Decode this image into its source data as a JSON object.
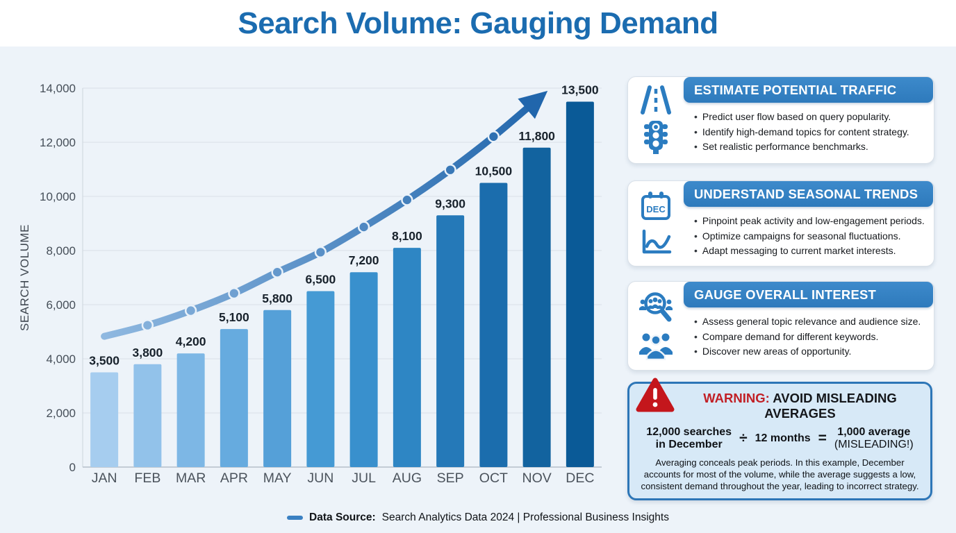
{
  "title": "Search Volume: Gauging Demand",
  "chart_data": {
    "type": "bar",
    "title": "Search Volume: Gauging Demand",
    "xlabel": "",
    "ylabel": "SEARCH VOLUME",
    "categories": [
      "JAN",
      "FEB",
      "MAR",
      "APR",
      "MAY",
      "JUN",
      "JUL",
      "AUG",
      "SEP",
      "OCT",
      "NOV",
      "DEC"
    ],
    "values": [
      3500,
      3800,
      4200,
      5100,
      5800,
      6500,
      7200,
      8100,
      9300,
      10500,
      11800,
      13500
    ],
    "value_labels": [
      "3,500",
      "3,800",
      "4,200",
      "5,100",
      "5,800",
      "6,500",
      "7,200",
      "8,100",
      "9,300",
      "10,500",
      "11,800",
      "13,500"
    ],
    "ylim": [
      0,
      14000
    ],
    "ytick_step": 2000,
    "ytick_labels": [
      "0",
      "2,000",
      "4,000",
      "6,000",
      "8,000",
      "10,000",
      "12,000",
      "14,000"
    ],
    "grid": true,
    "legend_position": "none",
    "bar_colors": [
      "#a6cdef",
      "#92c2ea",
      "#7db7e5",
      "#66abdf",
      "#55a0d8",
      "#459ad4",
      "#3990cd",
      "#2e86c4",
      "#2579b8",
      "#1b6dad",
      "#12639f",
      "#0a5a97"
    ],
    "trend": {
      "type": "arrow-line",
      "values": [
        4830,
        5240,
        5780,
        6420,
        7200,
        7940,
        8870,
        9870,
        10980,
        12210
      ],
      "marker_indices": [
        1,
        2,
        3,
        4,
        5,
        6,
        7,
        8,
        9
      ],
      "tip_month_offset": 10.25,
      "tip_value": 13900,
      "color_start": "#8fb8e0",
      "color_end": "#2166ac"
    }
  },
  "cards": [
    {
      "title": "ESTIMATE POTENTIAL TRAFFIC",
      "icons": [
        "road-icon",
        "traffic-light-icon"
      ],
      "bullets": [
        "Predict user flow based on query popularity.",
        "Identify high-demand topics for content strategy.",
        "Set realistic performance benchmarks."
      ]
    },
    {
      "title": "UNDERSTAND SEASONAL TRENDS",
      "icons": [
        "calendar-icon",
        "wave-chart-icon"
      ],
      "icon_text": "DEC",
      "bullets": [
        "Pinpoint peak activity and low-engagement periods.",
        "Optimize campaigns for seasonal fluctuations.",
        "Adapt messaging to current market interests."
      ]
    },
    {
      "title": "GAUGE OVERALL INTEREST",
      "icons": [
        "people-search-icon",
        "people-group-icon"
      ],
      "bullets": [
        "Assess general topic relevance and audience size.",
        "Compare demand for different keywords.",
        "Discover new areas of opportunity."
      ]
    }
  ],
  "warning": {
    "label": "WARNING:",
    "title": "AVOID MISLEADING AVERAGES",
    "formula": {
      "left_line1": "12,000 searches",
      "left_line2": "in December",
      "divide_sign": "÷",
      "middle": "12 months",
      "equals_sign": "=",
      "right_line1": "1,000 average",
      "right_line2": "(MISLEADING!)"
    },
    "body": "Averaging conceals peak periods. In this example, December accounts for most of the volume, while the average suggests a low, consistent demand throughout the year, leading to incorrect strategy."
  },
  "footer": {
    "label": "Data Source:",
    "text": "Search Analytics Data 2024 | Professional Business Insights"
  },
  "colors": {
    "title_blue": "#1b6cb0",
    "accent_blue": "#2b7cc0",
    "header_band": "#3585c7",
    "warning_red": "#c4161c",
    "warning_border": "#2d76b7",
    "warning_bg": "#d7e9f7",
    "background": "#edf3f9",
    "grid": "#d9dfe7",
    "axis_text": "#454e58"
  }
}
